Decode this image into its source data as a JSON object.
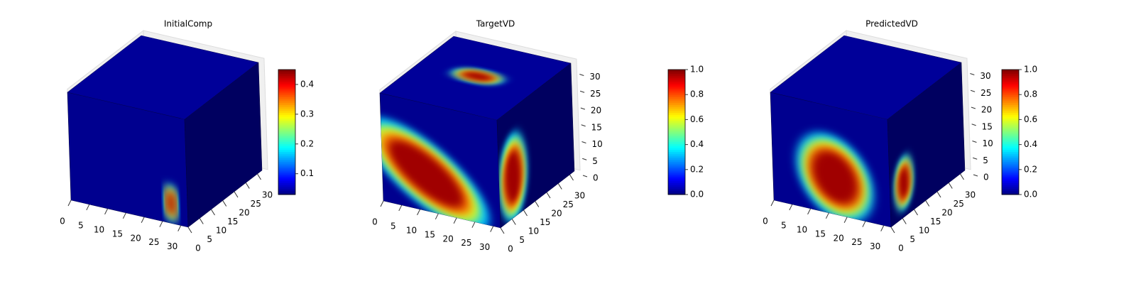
{
  "chart_data": [
    {
      "type": "voxel",
      "title": "InitialComp",
      "colormap": "jet",
      "xlim": [
        0,
        32
      ],
      "xticks": [
        0,
        5,
        10,
        15,
        20,
        25,
        30
      ],
      "ylim": [
        0,
        32
      ],
      "yticks": [
        0,
        5,
        10,
        15,
        20,
        25,
        30
      ],
      "zlim": [
        0,
        32
      ],
      "clim": [
        0.03,
        0.45
      ],
      "cticks": [
        0.1,
        0.2,
        0.3,
        0.4
      ]
    },
    {
      "type": "voxel",
      "title": "TargetVD",
      "colormap": "jet",
      "xlim": [
        0,
        32
      ],
      "xticks": [
        0,
        5,
        10,
        15,
        20,
        25,
        30
      ],
      "ylim": [
        0,
        32
      ],
      "yticks": [
        0,
        5,
        10,
        15,
        20,
        25,
        30
      ],
      "zlim": [
        0,
        32
      ],
      "zticks": [
        0,
        5,
        10,
        15,
        20,
        25,
        30
      ],
      "clim": [
        0,
        1
      ],
      "cticks": [
        {
          "value": 0,
          "label": "0.0"
        },
        0.2,
        0.4,
        0.6,
        0.8,
        {
          "value": 1,
          "label": "1.0"
        }
      ]
    },
    {
      "type": "voxel",
      "title": "PredictedVD",
      "colormap": "jet",
      "xlim": [
        0,
        32
      ],
      "xticks": [
        0,
        5,
        10,
        15,
        20,
        25,
        30
      ],
      "ylim": [
        0,
        32
      ],
      "yticks": [
        0,
        5,
        10,
        15,
        20,
        25,
        30
      ],
      "zlim": [
        0,
        32
      ],
      "zticks": [
        0,
        5,
        10,
        15,
        20,
        25,
        30
      ],
      "clim": [
        0,
        1
      ],
      "cticks": [
        {
          "value": 0,
          "label": "0.0"
        },
        0.2,
        0.4,
        0.6,
        0.8,
        {
          "value": 1,
          "label": "1.0"
        }
      ]
    }
  ]
}
